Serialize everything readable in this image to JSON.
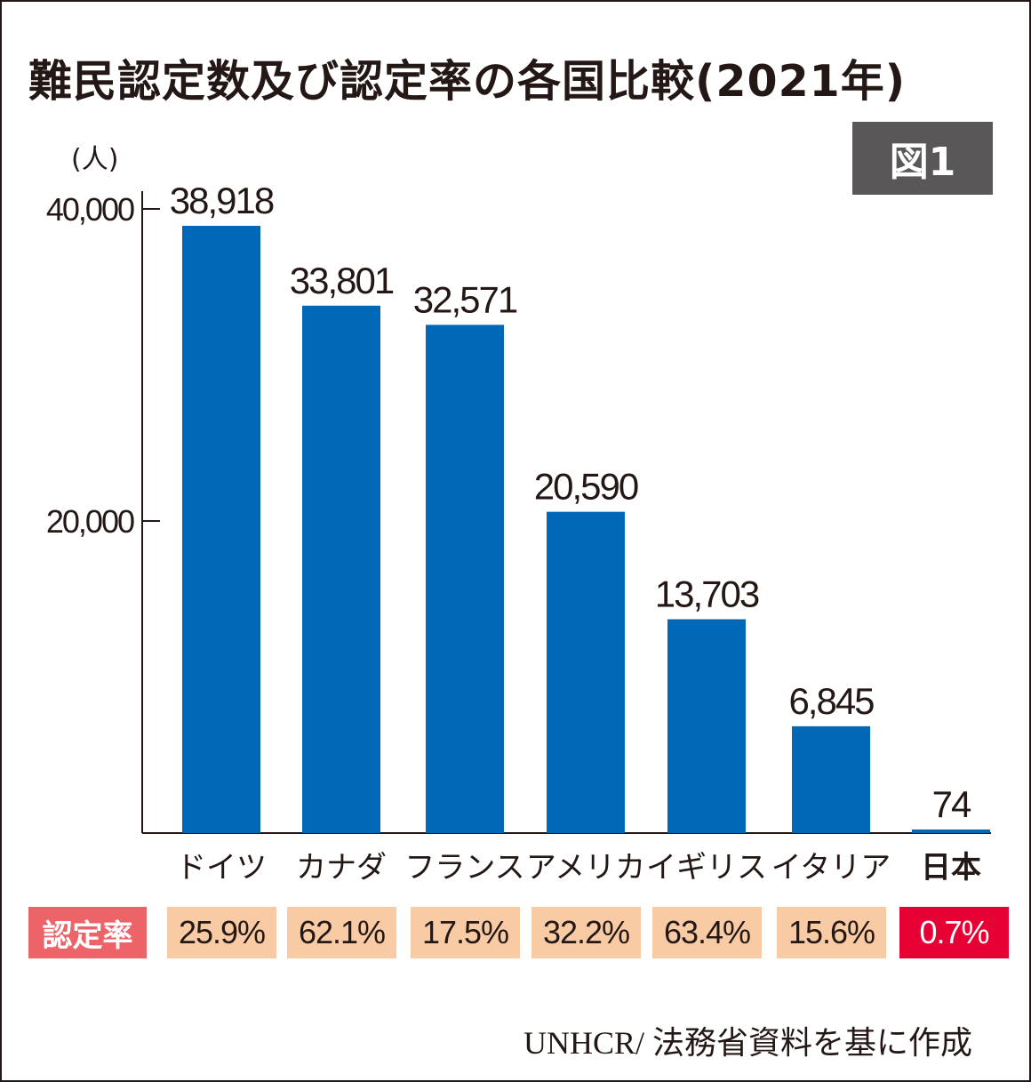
{
  "title": "難民認定数及び認定率の各国比較(2021年)",
  "figure_label": "図1",
  "source": "UNHCR/ 法務省資料を基に作成",
  "rate_label": "認定率",
  "colors": {
    "bar": "#0068b7",
    "rate_box": "#f9cba5",
    "rate_highlight": "#e60033",
    "rate_label_bg": "#ec6468",
    "figure_bg": "#595757"
  },
  "chart_data": {
    "type": "bar",
    "title": "難民認定数及び認定率の各国比較(2021年)",
    "ylabel": "(人)",
    "ylim": [
      0,
      40000
    ],
    "yticks": [
      {
        "value": 20000,
        "label": "20,000"
      },
      {
        "value": 40000,
        "label": "40,000"
      }
    ],
    "categories": [
      "ドイツ",
      "カナダ",
      "フランス",
      "アメリカ",
      "イギリス",
      "イタリア",
      "日本"
    ],
    "values": [
      38918,
      33801,
      32571,
      20590,
      13703,
      6845,
      74
    ],
    "value_labels": [
      "38,918",
      "33,801",
      "32,571",
      "20,590",
      "13,703",
      "6,845",
      "74"
    ],
    "rates": [
      "25.9%",
      "62.1%",
      "17.5%",
      "32.2%",
      "63.4%",
      "15.6%",
      "0.7%"
    ],
    "highlight_index": 6
  }
}
